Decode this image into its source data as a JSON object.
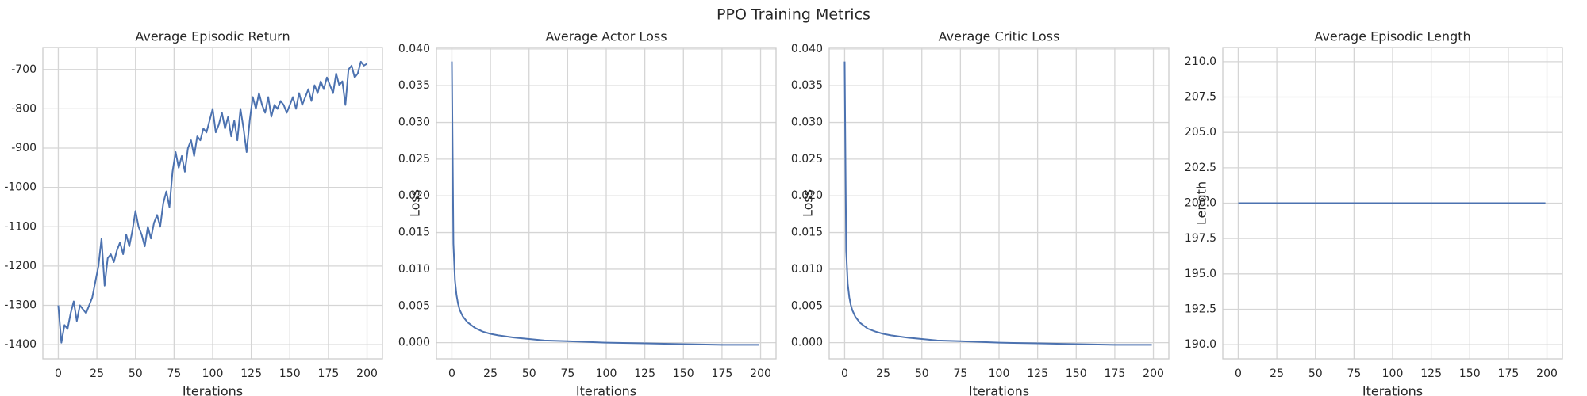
{
  "title": "PPO Training Metrics",
  "chart_data": [
    {
      "type": "line",
      "title": "Average Episodic Return",
      "xlabel": "Iterations",
      "xlim": [
        -10,
        210
      ],
      "xticks": [
        0,
        25,
        50,
        75,
        100,
        125,
        150,
        175,
        200
      ],
      "ylim": [
        -1436,
        -644
      ],
      "yticks": [
        -1400,
        -1300,
        -1200,
        -1100,
        -1000,
        -900,
        -800,
        -700
      ],
      "grid": true,
      "x": [
        0,
        2,
        4,
        6,
        8,
        10,
        12,
        14,
        16,
        18,
        20,
        22,
        24,
        26,
        28,
        30,
        32,
        34,
        36,
        38,
        40,
        42,
        44,
        46,
        48,
        50,
        52,
        54,
        56,
        58,
        60,
        62,
        64,
        66,
        68,
        70,
        72,
        74,
        76,
        78,
        80,
        82,
        84,
        86,
        88,
        90,
        92,
        94,
        96,
        98,
        100,
        102,
        104,
        106,
        108,
        110,
        112,
        114,
        116,
        118,
        120,
        122,
        124,
        126,
        128,
        130,
        132,
        134,
        136,
        138,
        140,
        142,
        144,
        146,
        148,
        150,
        152,
        154,
        156,
        158,
        160,
        162,
        164,
        166,
        168,
        170,
        172,
        174,
        176,
        178,
        180,
        182,
        184,
        186,
        188,
        190,
        192,
        194,
        196,
        198,
        200
      ],
      "series": [
        {
          "color": "#4c72b0",
          "values": [
            -1300,
            -1395,
            -1350,
            -1360,
            -1320,
            -1290,
            -1340,
            -1300,
            -1310,
            -1320,
            -1300,
            -1280,
            -1240,
            -1200,
            -1130,
            -1250,
            -1180,
            -1170,
            -1190,
            -1160,
            -1140,
            -1170,
            -1120,
            -1150,
            -1110,
            -1060,
            -1100,
            -1120,
            -1150,
            -1100,
            -1130,
            -1090,
            -1070,
            -1100,
            -1040,
            -1010,
            -1050,
            -960,
            -910,
            -950,
            -920,
            -960,
            -900,
            -880,
            -920,
            -870,
            -880,
            -850,
            -860,
            -830,
            -800,
            -860,
            -840,
            -810,
            -850,
            -820,
            -870,
            -830,
            -880,
            -800,
            -850,
            -910,
            -830,
            -770,
            -800,
            -760,
            -790,
            -810,
            -770,
            -820,
            -790,
            -800,
            -780,
            -790,
            -810,
            -790,
            -770,
            -800,
            -760,
            -790,
            -770,
            -750,
            -780,
            -740,
            -760,
            -730,
            -750,
            -720,
            -740,
            -760,
            -710,
            -740,
            -730,
            -790,
            -700,
            -690,
            -720,
            -710,
            -680,
            -690,
            -685
          ]
        }
      ]
    },
    {
      "type": "line",
      "title": "Average Actor Loss",
      "xlabel": "Iterations",
      "ylabel": "Loss",
      "xlim": [
        -10,
        210
      ],
      "xticks": [
        0,
        25,
        50,
        75,
        100,
        125,
        150,
        175,
        200
      ],
      "ylim": [
        -0.0022,
        0.0402
      ],
      "yticks": [
        {
          "value": 0,
          "label": "0.000"
        },
        {
          "value": 0.005,
          "label": "0.005"
        },
        {
          "value": 0.01,
          "label": "0.010"
        },
        {
          "value": 0.015,
          "label": "0.015"
        },
        {
          "value": 0.02,
          "label": "0.020"
        },
        {
          "value": 0.025,
          "label": "0.025"
        },
        {
          "value": 0.03,
          "label": "0.030"
        },
        {
          "value": 0.035,
          "label": "0.035"
        },
        {
          "value": 0.04,
          "label": "0.040"
        }
      ],
      "grid": true,
      "x": [
        0,
        1,
        2,
        3,
        4,
        5,
        7,
        10,
        15,
        20,
        25,
        30,
        40,
        50,
        60,
        75,
        100,
        125,
        150,
        175,
        199
      ],
      "series": [
        {
          "color": "#4c72b0",
          "values": [
            0.0383,
            0.0135,
            0.0085,
            0.0065,
            0.0053,
            0.0045,
            0.0036,
            0.0028,
            0.002,
            0.0015,
            0.0012,
            0.001,
            0.0007,
            0.0005,
            0.0003,
            0.0002,
            0,
            -0.0001,
            -0.0002,
            -0.0003,
            -0.0003
          ]
        }
      ]
    },
    {
      "type": "line",
      "title": "Average Critic Loss",
      "xlabel": "Iterations",
      "ylabel": "Loss",
      "xlim": [
        -10,
        210
      ],
      "xticks": [
        0,
        25,
        50,
        75,
        100,
        125,
        150,
        175,
        200
      ],
      "ylim": [
        -0.0022,
        0.0402
      ],
      "yticks": [
        {
          "value": 0,
          "label": "0.000"
        },
        {
          "value": 0.005,
          "label": "0.005"
        },
        {
          "value": 0.01,
          "label": "0.010"
        },
        {
          "value": 0.015,
          "label": "0.015"
        },
        {
          "value": 0.02,
          "label": "0.020"
        },
        {
          "value": 0.025,
          "label": "0.025"
        },
        {
          "value": 0.03,
          "label": "0.030"
        },
        {
          "value": 0.035,
          "label": "0.035"
        },
        {
          "value": 0.04,
          "label": "0.040"
        }
      ],
      "grid": true,
      "x": [
        0,
        1,
        2,
        3,
        4,
        5,
        7,
        10,
        15,
        20,
        25,
        30,
        40,
        50,
        60,
        75,
        100,
        125,
        150,
        175,
        199
      ],
      "series": [
        {
          "color": "#4c72b0",
          "values": [
            0.0383,
            0.0125,
            0.008,
            0.0062,
            0.0051,
            0.0044,
            0.0035,
            0.0027,
            0.0019,
            0.0015,
            0.0012,
            0.001,
            0.0007,
            0.0005,
            0.0003,
            0.0002,
            0,
            -0.0001,
            -0.0002,
            -0.0003,
            -0.0003
          ]
        }
      ]
    },
    {
      "type": "line",
      "title": "Average Episodic Length",
      "xlabel": "Iterations",
      "ylabel": "Length",
      "xlim": [
        -10,
        210
      ],
      "xticks": [
        0,
        25,
        50,
        75,
        100,
        125,
        150,
        175,
        200
      ],
      "ylim": [
        189,
        211
      ],
      "yticks": [
        {
          "value": 190,
          "label": "190.0"
        },
        {
          "value": 192.5,
          "label": "192.5"
        },
        {
          "value": 195,
          "label": "195.0"
        },
        {
          "value": 197.5,
          "label": "197.5"
        },
        {
          "value": 200,
          "label": "200.0"
        },
        {
          "value": 202.5,
          "label": "202.5"
        },
        {
          "value": 205,
          "label": "205.0"
        },
        {
          "value": 207.5,
          "label": "207.5"
        },
        {
          "value": 210,
          "label": "210.0"
        }
      ],
      "grid": true,
      "x": [
        0,
        199
      ],
      "series": [
        {
          "color": "#4c72b0",
          "values": [
            200,
            200
          ]
        }
      ]
    }
  ]
}
